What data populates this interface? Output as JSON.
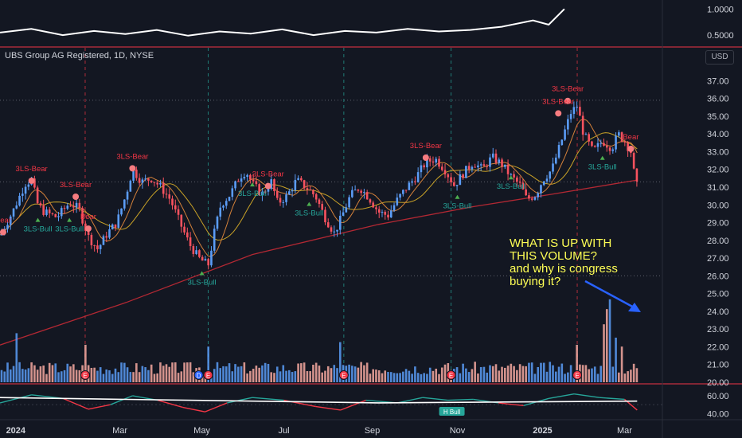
{
  "header": {
    "title": "UBS Group AG Registered, 1D, NYSE",
    "currency": "USD"
  },
  "annotation": {
    "lines": [
      "WHAT IS UP WITH",
      "THIS VOLUME?",
      "and why is congress",
      "buying it?"
    ]
  },
  "colors": {
    "bg": "#131722",
    "grid": "#2a2e39",
    "up": "#5b9cf6",
    "down": "#f7525f",
    "ma_red": "#b22833",
    "ma_yellow": "#c9a227",
    "ma_orange": "#d4813a",
    "ann": "#ffff55",
    "arrow": "#2962ff",
    "bull": "#26a69a",
    "bear": "#f23645"
  },
  "chart_data": [
    {
      "type": "line",
      "name": "top oscillator",
      "y_ticks": [
        "1.0000",
        "0.5000"
      ],
      "ylim": [
        0.35,
        1.05
      ],
      "x": [
        0,
        10,
        20,
        30,
        40,
        50,
        60,
        70,
        80,
        90,
        100,
        110,
        120,
        130,
        140,
        150,
        160,
        170,
        175,
        180
      ],
      "values": [
        0.55,
        0.62,
        0.5,
        0.58,
        0.52,
        0.6,
        0.49,
        0.57,
        0.53,
        0.61,
        0.5,
        0.58,
        0.55,
        0.62,
        0.57,
        0.6,
        0.66,
        0.78,
        0.7,
        1.0
      ]
    },
    {
      "type": "candlestick",
      "name": "UBS Group AG Registered",
      "y_ticks": [
        "37.00",
        "36.00",
        "35.00",
        "34.00",
        "33.00",
        "32.00",
        "31.00",
        "30.00",
        "29.00",
        "28.00",
        "27.00",
        "26.00",
        "25.00",
        "24.00",
        "23.00",
        "22.00",
        "21.00",
        "20.00"
      ],
      "ylim": [
        20,
        37.6
      ],
      "x_ticks": [
        {
          "label": "2024",
          "x": 5
        },
        {
          "label": "Mar",
          "x": 38
        },
        {
          "label": "May",
          "x": 64
        },
        {
          "label": "Jul",
          "x": 90
        },
        {
          "label": "Sep",
          "x": 118
        },
        {
          "label": "Nov",
          "x": 145
        },
        {
          "label": "2025",
          "x": 172
        },
        {
          "label": "Mar",
          "x": 198
        }
      ],
      "xlim": [
        0,
        210
      ],
      "close_path": [
        [
          0,
          28.3
        ],
        [
          4,
          29.6
        ],
        [
          8,
          31.2
        ],
        [
          10,
          31.4
        ],
        [
          12,
          30.0
        ],
        [
          14,
          29.6
        ],
        [
          18,
          29.3
        ],
        [
          22,
          30.1
        ],
        [
          25,
          29.8
        ],
        [
          28,
          28.2
        ],
        [
          31,
          27.5
        ],
        [
          34,
          28.4
        ],
        [
          37,
          29.0
        ],
        [
          40,
          30.6
        ],
        [
          42,
          32.0
        ],
        [
          45,
          31.3
        ],
        [
          48,
          31.5
        ],
        [
          51,
          31.0
        ],
        [
          54,
          30.3
        ],
        [
          57,
          29.0
        ],
        [
          60,
          27.8
        ],
        [
          63,
          27.0
        ],
        [
          66,
          26.6
        ],
        [
          68,
          28.5
        ],
        [
          70,
          30.0
        ],
        [
          73,
          30.6
        ],
        [
          76,
          31.6
        ],
        [
          78,
          31.9
        ],
        [
          80,
          31.2
        ],
        [
          83,
          30.6
        ],
        [
          86,
          31.3
        ],
        [
          88,
          30.1
        ],
        [
          91,
          30.5
        ],
        [
          94,
          31.4
        ],
        [
          97,
          31.0
        ],
        [
          100,
          30.5
        ],
        [
          103,
          29.3
        ],
        [
          106,
          28.4
        ],
        [
          108,
          29.2
        ],
        [
          111,
          30.5
        ],
        [
          114,
          31.0
        ],
        [
          117,
          30.4
        ],
        [
          120,
          29.6
        ],
        [
          123,
          29.4
        ],
        [
          126,
          30.3
        ],
        [
          129,
          31.0
        ],
        [
          132,
          31.6
        ],
        [
          135,
          32.4
        ],
        [
          138,
          32.6
        ],
        [
          141,
          32.0
        ],
        [
          144,
          31.1
        ],
        [
          147,
          31.8
        ],
        [
          150,
          32.4
        ],
        [
          153,
          32.0
        ],
        [
          156,
          32.7
        ],
        [
          159,
          32.3
        ],
        [
          162,
          31.6
        ],
        [
          165,
          31.1
        ],
        [
          167,
          30.3
        ],
        [
          170,
          30.6
        ],
        [
          172,
          31.4
        ],
        [
          175,
          32.0
        ],
        [
          178,
          33.6
        ],
        [
          181,
          35.2
        ],
        [
          183,
          35.6
        ],
        [
          185,
          34.0
        ],
        [
          188,
          33.0
        ],
        [
          191,
          33.6
        ],
        [
          194,
          33.2
        ],
        [
          196,
          34.0
        ],
        [
          198,
          33.6
        ],
        [
          200,
          33.0
        ],
        [
          201,
          31.8
        ],
        [
          202,
          31.0
        ]
      ],
      "ma_slow": [
        [
          0,
          22.1
        ],
        [
          40,
          24.5
        ],
        [
          80,
          27.2
        ],
        [
          120,
          28.9
        ],
        [
          150,
          29.9
        ],
        [
          175,
          30.6
        ],
        [
          202,
          31.4
        ]
      ],
      "horizontal_lines": [
        35.9,
        31.3,
        26.0
      ],
      "signals": [
        {
          "label": "3LS-Bear",
          "x": 10,
          "y": 31.9,
          "color": "bear"
        },
        {
          "label": "3LS-Bear",
          "x": 24,
          "y": 31.0,
          "color": "bear"
        },
        {
          "label": "3LS-Bear",
          "x": 42,
          "y": 32.6,
          "color": "bear"
        },
        {
          "label": "3LS-Bear",
          "x": 85,
          "y": 31.6,
          "color": "bear"
        },
        {
          "label": "3LS-Bear",
          "x": 135,
          "y": 33.2,
          "color": "bear"
        },
        {
          "label": "3LS-Bear",
          "x": 180,
          "y": 36.4,
          "color": "bear"
        },
        {
          "label": "3LS-Bear",
          "x": 177,
          "y": 35.7,
          "color": "bear"
        },
        {
          "label": "Bear",
          "x": 28,
          "y": 29.2,
          "color": "bear"
        },
        {
          "label": "Bear",
          "x": 1,
          "y": 29.0,
          "color": "bear"
        },
        {
          "label": "Bear",
          "x": 200,
          "y": 33.7,
          "color": "bear"
        },
        {
          "label": "3LS-Bull",
          "x": 12,
          "y": 28.5,
          "color": "bull"
        },
        {
          "label": "3LS-Bull",
          "x": 22,
          "y": 28.5,
          "color": "bull"
        },
        {
          "label": "3LS-Bull",
          "x": 80,
          "y": 30.5,
          "color": "bull"
        },
        {
          "label": "3LS-Bull",
          "x": 98,
          "y": 29.4,
          "color": "bull"
        },
        {
          "label": "3LS-Bull",
          "x": 64,
          "y": 25.5,
          "color": "bull"
        },
        {
          "label": "3LS-Bull",
          "x": 145,
          "y": 29.8,
          "color": "bull"
        },
        {
          "label": "3LS-Bull",
          "x": 162,
          "y": 30.9,
          "color": "bull"
        },
        {
          "label": "3LS-Bull",
          "x": 191,
          "y": 32.0,
          "color": "bull"
        }
      ],
      "event_markers": [
        {
          "label": "E",
          "x": 27
        },
        {
          "label": "D",
          "x": 63
        },
        {
          "label": "E",
          "x": 66
        },
        {
          "label": "E",
          "x": 109
        },
        {
          "label": "E",
          "x": 143
        },
        {
          "label": "E",
          "x": 183
        }
      ]
    },
    {
      "type": "bar",
      "name": "volume",
      "x": [
        5,
        27,
        66,
        108,
        183,
        191,
        192,
        193,
        195,
        197
      ],
      "values": [
        0.55,
        0.42,
        0.4,
        0.45,
        0.42,
        0.65,
        0.82,
        0.93,
        0.5,
        0.4
      ],
      "note": "relative heights; remaining bars baseline ~0.12-0.25"
    },
    {
      "type": "line",
      "name": "bottom oscillator",
      "y_ticks": [
        "60.00",
        "40.00"
      ],
      "ylim": [
        35,
        68
      ],
      "badge": "H Bull",
      "badge_x": 143,
      "values": [
        [
          0,
          52
        ],
        [
          10,
          61
        ],
        [
          20,
          57
        ],
        [
          28,
          45
        ],
        [
          35,
          50
        ],
        [
          42,
          60
        ],
        [
          50,
          55
        ],
        [
          58,
          47
        ],
        [
          65,
          42
        ],
        [
          72,
          52
        ],
        [
          80,
          58
        ],
        [
          90,
          55
        ],
        [
          100,
          48
        ],
        [
          108,
          44
        ],
        [
          116,
          55
        ],
        [
          126,
          52
        ],
        [
          134,
          58
        ],
        [
          142,
          55
        ],
        [
          150,
          56
        ],
        [
          158,
          52
        ],
        [
          166,
          49
        ],
        [
          174,
          57
        ],
        [
          182,
          62
        ],
        [
          190,
          58
        ],
        [
          198,
          56
        ],
        [
          202,
          44
        ]
      ],
      "signal": [
        [
          0,
          58
        ],
        [
          40,
          56
        ],
        [
          80,
          54
        ],
        [
          120,
          52
        ],
        [
          160,
          53
        ],
        [
          202,
          54
        ]
      ]
    }
  ]
}
